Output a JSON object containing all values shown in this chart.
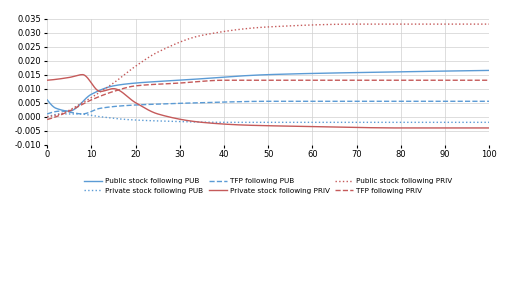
{
  "xlim": [
    0,
    100
  ],
  "ylim": [
    -0.01,
    0.035
  ],
  "yticks": [
    -0.01,
    -0.005,
    0.0,
    0.005,
    0.01,
    0.015,
    0.02,
    0.025,
    0.03,
    0.035
  ],
  "xticks": [
    0,
    10,
    20,
    30,
    40,
    50,
    60,
    70,
    80,
    90,
    100
  ],
  "blue_solid_label": "Public stock following PUB",
  "blue_dotted_label": "Private stock following PUB",
  "blue_dashed_label": "TFP following PUB",
  "red_solid_label": "Private stock following PRIV",
  "red_dotted_label": "Public stock following PRIV",
  "red_dashed_label": "TFP following PRIV",
  "blue_color": "#5B9BD5",
  "red_color": "#C55A5A",
  "background_color": "#ffffff",
  "grid_color": "#d0d0d0"
}
